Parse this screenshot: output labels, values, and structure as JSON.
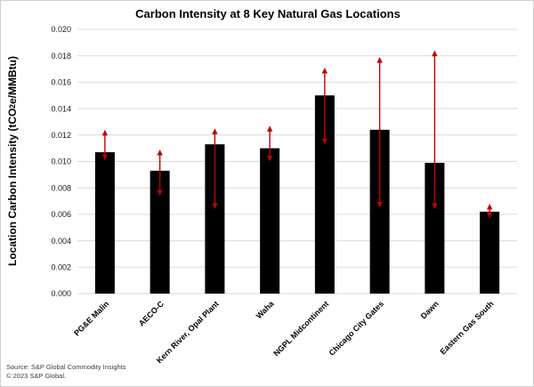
{
  "title": "Carbon Intensity at 8 Key Natural Gas Locations",
  "y_axis": {
    "label_pre": "Location Carbon Intensity (tCO",
    "label_sub": "2",
    "label_post": "e/MMBtu)"
  },
  "footer": {
    "line1": "Source: S&P Global Commodity Insights",
    "line2": "© 2023 S&P Global."
  },
  "colors": {
    "bar": "#000000",
    "error_bar": "#c00000",
    "gridline": "#d9d9d9",
    "tick_text": "#1a1a1a",
    "label_text": "#000000",
    "footer_text": "#3f3f3f"
  },
  "chart_data": {
    "type": "bar",
    "title": "Carbon Intensity at 8 Key Natural Gas Locations",
    "xlabel": "",
    "ylabel": "Location Carbon Intensity (tCO₂e/MMBtu)",
    "categories": [
      "PG&E Malin",
      "AECO-C",
      "Kern River, Opal Plant",
      "Waha",
      "NGPL Midcontinent",
      "Chicago City Gates",
      "Dawn",
      "Eastern Gas South"
    ],
    "values": [
      0.0107,
      0.0093,
      0.0113,
      0.011,
      0.015,
      0.0124,
      0.0099,
      0.0062
    ],
    "error_low": [
      0.0104,
      0.0077,
      0.0067,
      0.0103,
      0.0116,
      0.0068,
      0.0067,
      0.006
    ],
    "error_high": [
      0.0121,
      0.0106,
      0.0122,
      0.0124,
      0.0168,
      0.0176,
      0.0181,
      0.0065
    ],
    "ylim": [
      0,
      0.02
    ],
    "ytick_step": 0.002,
    "ytick_decimals": 3,
    "grid": "horizontal",
    "legend": "none",
    "error_bar_style": "arrow-capped",
    "xtick_rotation_deg": 45
  }
}
